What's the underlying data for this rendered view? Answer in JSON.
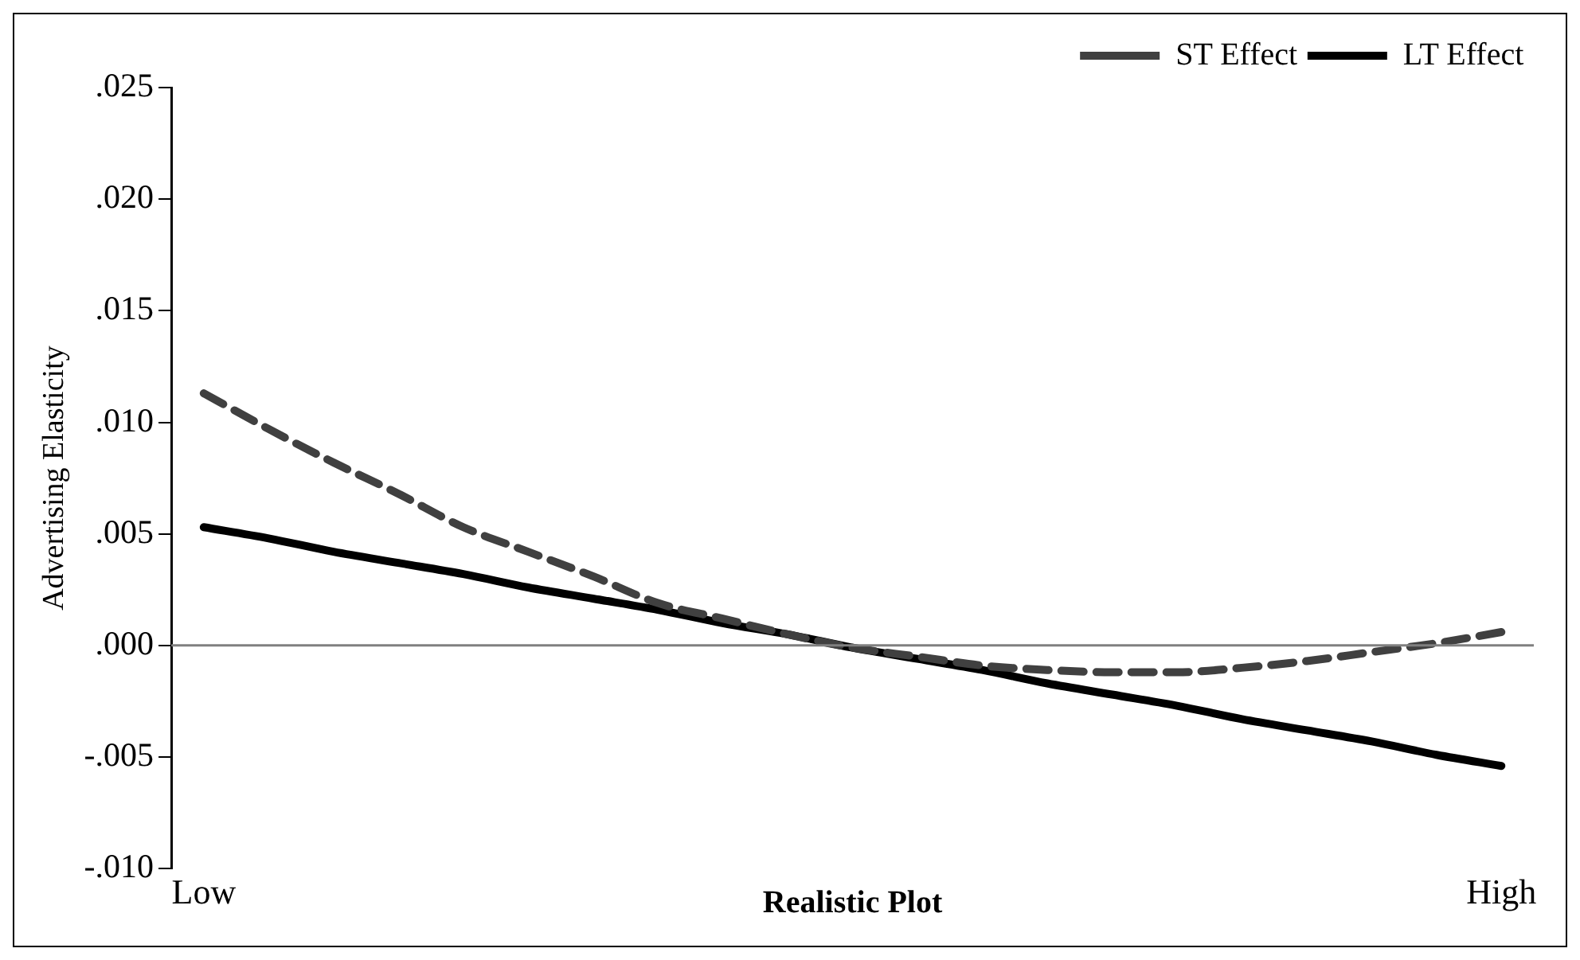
{
  "chart_data": {
    "type": "line",
    "xlabel": "Realistic Plot",
    "ylabel": "Advertising Elasticity",
    "categories": [
      "Low",
      null,
      null,
      null,
      null,
      null,
      null,
      null,
      null,
      null,
      null,
      null,
      null,
      null,
      null,
      null,
      null,
      null,
      null,
      null,
      "High"
    ],
    "ylim": [
      -0.01,
      0.025
    ],
    "yticks": [
      {
        "value": -0.01,
        "label": "-.010"
      },
      {
        "value": -0.005,
        "label": "-.005"
      },
      {
        "value": 0,
        "label": ".000"
      },
      {
        "value": 0.005,
        "label": ".005"
      },
      {
        "value": 0.01,
        "label": ".010"
      },
      {
        "value": 0.015,
        "label": ".015"
      },
      {
        "value": 0.02,
        "label": ".020"
      },
      {
        "value": 0.025,
        "label": ".025"
      }
    ],
    "grid": false,
    "legend": "top right",
    "marker": "none",
    "ref_lines": [
      {
        "axis": "y",
        "value": 0,
        "color": "#808080"
      }
    ],
    "series": [
      {
        "name": "ST Effect",
        "color": "#404040",
        "line_style": "dashed",
        "values": [
          0.0113,
          0.0097,
          0.0082,
          0.0068,
          0.0053,
          0.0042,
          0.0031,
          0.0019,
          0.0012,
          0.0005,
          -0.0001,
          -0.0005,
          -0.0009,
          -0.0011,
          -0.0012,
          -0.0012,
          -0.001,
          -0.0007,
          -0.0003,
          0.0001,
          0.0006
        ]
      },
      {
        "name": "LT Effect",
        "color": "#000000",
        "line_style": "solid",
        "values": [
          0.0053,
          0.0048,
          0.0042,
          0.0037,
          0.0032,
          0.0026,
          0.0021,
          0.0016,
          0.001,
          0.0005,
          -0.0001,
          -0.0006,
          -0.0011,
          -0.0017,
          -0.0022,
          -0.0027,
          -0.0033,
          -0.0038,
          -0.0043,
          -0.0049,
          -0.0054
        ]
      }
    ]
  }
}
